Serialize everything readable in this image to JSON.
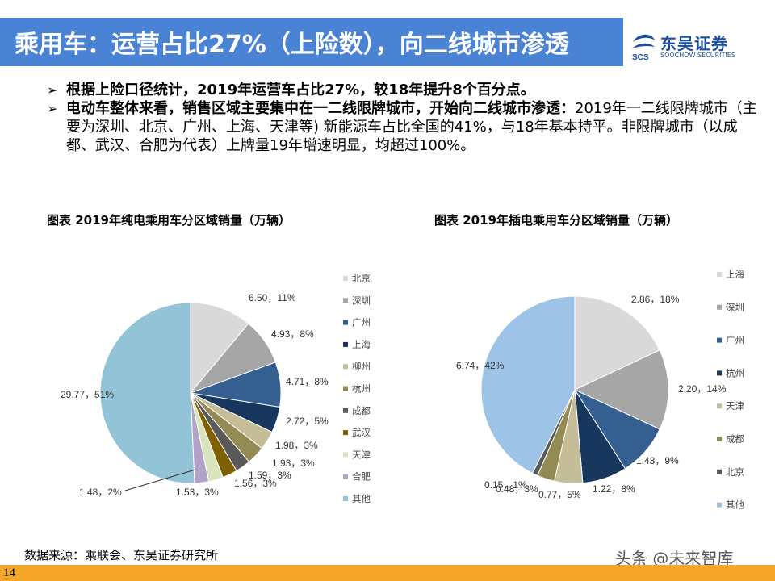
{
  "header": {
    "title": "乘用车：运营占比27%（上险数），向二线城市渗透",
    "logo_cn": "东吴证券",
    "logo_en": "SOOCHOW SECURITIES",
    "logo_mark": "SCS"
  },
  "bullets": [
    {
      "bold": "根据上险口径统计，2019年运营车占比27%，较18年提升8个百分点。",
      "text": ""
    },
    {
      "bold": "电动车整体来看，销售区域主要集中在一二线限牌城市，开始向二线城市渗透：",
      "text": "2019年一二线限牌城市（主要为深圳、北京、广州、上海、天津等) 新能源车占比全国的41%，与18年基本持平。非限牌城市（以成都、武汉、合肥为代表）上牌量19年增速明显，均超过100%。"
    }
  ],
  "chart_data": [
    {
      "type": "pie",
      "title": "图表  2019年纯电乘用车分区域销量（万辆）",
      "legend_position": "right",
      "slices": [
        {
          "name": "北京",
          "value": 6.5,
          "label": "6.50，11%",
          "color": "#d9d9d9"
        },
        {
          "name": "深圳",
          "value": 4.93,
          "label": "4.93，8%",
          "color": "#a6a6a6"
        },
        {
          "name": "广州",
          "value": 4.71,
          "label": "4.71，8%",
          "color": "#355f91"
        },
        {
          "name": "上海",
          "value": 2.72,
          "label": "2.72，5%",
          "color": "#17375e"
        },
        {
          "name": "柳州",
          "value": 1.98,
          "label": "1.98，3%",
          "color": "#c4bd97"
        },
        {
          "name": "杭州",
          "value": 1.93,
          "label": "1.93，3%",
          "color": "#948a54"
        },
        {
          "name": "成都",
          "value": 1.59,
          "label": "1.59，3%",
          "color": "#595959"
        },
        {
          "name": "武汉",
          "value": 1.56,
          "label": "1.56，3%",
          "color": "#7f6000"
        },
        {
          "name": "天津",
          "value": 1.53,
          "label": "1.53，3%",
          "color": "#d7e4bd"
        },
        {
          "name": "合肥",
          "value": 1.48,
          "label": "1.48，2%",
          "color": "#b3a2c7"
        },
        {
          "name": "其他",
          "value": 29.77,
          "label": "29.77，51%",
          "color": "#93c3d6"
        }
      ]
    },
    {
      "type": "pie",
      "title": "图表  2019年插电乘用车分区域销量（万辆）",
      "legend_position": "right",
      "slices": [
        {
          "name": "上海",
          "value": 2.86,
          "label": "2.86，18%",
          "color": "#d9d9d9"
        },
        {
          "name": "深圳",
          "value": 2.2,
          "label": "2.20，14%",
          "color": "#a6a6a6"
        },
        {
          "name": "广州",
          "value": 1.43,
          "label": "1.43，9%",
          "color": "#355f91"
        },
        {
          "name": "杭州",
          "value": 1.22,
          "label": "1.22，8%",
          "color": "#17375e"
        },
        {
          "name": "天津",
          "value": 0.77,
          "label": "0.77，5%",
          "color": "#c4bd97"
        },
        {
          "name": "成都",
          "value": 0.48,
          "label": "0.48，3%",
          "color": "#948a54"
        },
        {
          "name": "北京",
          "value": 0.15,
          "label": "0.15，1%",
          "color": "#595959"
        },
        {
          "name": "其他",
          "value": 6.74,
          "label": "6.74，42%",
          "color": "#9dc3e6"
        }
      ]
    }
  ],
  "footer": {
    "source": "数据来源：乘联会、东吴证券研究所",
    "watermark": "头条 @未来智库",
    "page": "14"
  }
}
